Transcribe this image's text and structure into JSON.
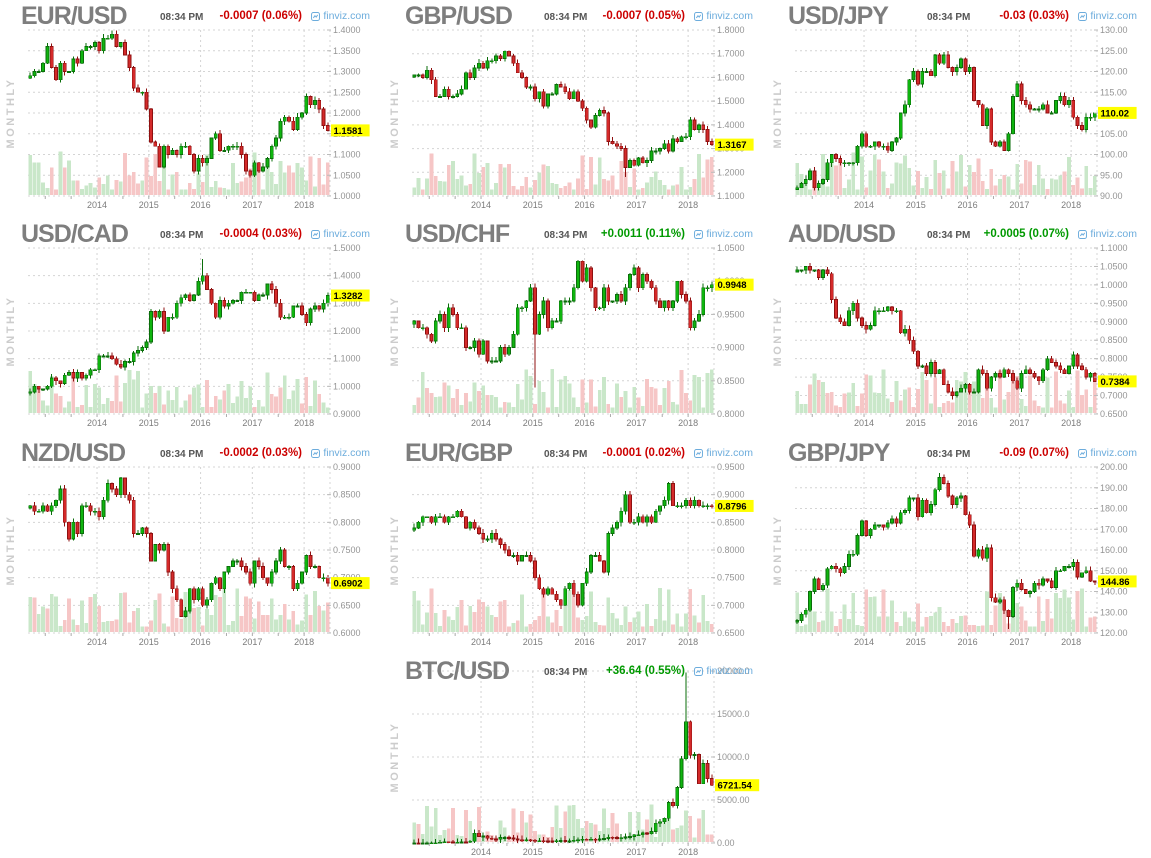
{
  "page": {
    "background": "#ffffff"
  },
  "colors": {
    "change_down": "#cc0000",
    "change_up": "#009900",
    "link_blue": "#6cacdc",
    "title_gray": "#7e7e7e",
    "badge_yellow": "#ffff00",
    "badge_text": "#000000",
    "grid": "#d4d4d4",
    "axis_label": "#949494",
    "timeframe_label": "#cccccc",
    "candle_up": "#0fb50f",
    "candle_up_border": "#0a6e0a",
    "candle_down": "#d42a2a",
    "candle_down_border": "#8f1010",
    "vol_up": "#c9e7c9",
    "vol_down": "#f6c6c6"
  },
  "chart_data": [
    {
      "type": "candlestick",
      "pair": "EUR/USD",
      "timeframe": "MONTHLY",
      "time": "08:34 PM",
      "change": "-0.0007 (0.06%)",
      "direction": "down",
      "source": "finviz.com",
      "last_label": "1.1581",
      "last_value": 1.1581,
      "y_min": 1.0,
      "y_max": 1.4,
      "y_ticks": [
        "1.4000",
        "1.3500",
        "1.3000",
        "1.2500",
        "1.2000",
        "1.1500",
        "1.1000",
        "1.0500",
        "1.0000"
      ],
      "x_labels": [
        "2014",
        "2015",
        "2016",
        "2017",
        "2018"
      ],
      "closes": [
        1.29,
        1.3,
        1.3,
        1.32,
        1.36,
        1.31,
        1.28,
        1.32,
        1.3,
        1.3,
        1.33,
        1.32,
        1.35,
        1.36,
        1.36,
        1.37,
        1.35,
        1.38,
        1.38,
        1.39,
        1.36,
        1.37,
        1.34,
        1.31,
        1.26,
        1.25,
        1.25,
        1.21,
        1.13,
        1.12,
        1.07,
        1.12,
        1.1,
        1.11,
        1.1,
        1.12,
        1.12,
        1.1,
        1.06,
        1.09,
        1.08,
        1.09,
        1.14,
        1.15,
        1.11,
        1.11,
        1.12,
        1.12,
        1.12,
        1.1,
        1.06,
        1.05,
        1.08,
        1.06,
        1.07,
        1.09,
        1.12,
        1.14,
        1.18,
        1.19,
        1.18,
        1.16,
        1.19,
        1.2,
        1.24,
        1.22,
        1.23,
        1.21,
        1.17,
        1.1581
      ],
      "wick_extremes": []
    },
    {
      "type": "candlestick",
      "pair": "GBP/USD",
      "timeframe": "MONTHLY",
      "time": "08:34 PM",
      "change": "-0.0007 (0.05%)",
      "direction": "down",
      "source": "finviz.com",
      "last_label": "1.3167",
      "last_value": 1.3167,
      "y_min": 1.1,
      "y_max": 1.8,
      "y_ticks": [
        "1.8000",
        "1.7000",
        "1.6000",
        "1.5000",
        "1.4000",
        "1.3000",
        "1.2000",
        "1.1000"
      ],
      "x_labels": [
        "2014",
        "2015",
        "2016",
        "2017",
        "2018"
      ],
      "closes": [
        1.61,
        1.61,
        1.6,
        1.63,
        1.59,
        1.52,
        1.52,
        1.55,
        1.52,
        1.52,
        1.53,
        1.55,
        1.62,
        1.6,
        1.64,
        1.66,
        1.64,
        1.67,
        1.67,
        1.69,
        1.68,
        1.71,
        1.69,
        1.66,
        1.62,
        1.6,
        1.56,
        1.56,
        1.51,
        1.54,
        1.48,
        1.53,
        1.53,
        1.57,
        1.56,
        1.54,
        1.51,
        1.54,
        1.5,
        1.47,
        1.42,
        1.39,
        1.44,
        1.46,
        1.45,
        1.33,
        1.32,
        1.31,
        1.3,
        1.22,
        1.25,
        1.23,
        1.26,
        1.24,
        1.25,
        1.29,
        1.29,
        1.3,
        1.32,
        1.29,
        1.34,
        1.33,
        1.35,
        1.35,
        1.42,
        1.38,
        1.4,
        1.38,
        1.33,
        1.3167
      ],
      "wick_extremes": [
        {
          "index": 49,
          "low": 1.18
        }
      ]
    },
    {
      "type": "candlestick",
      "pair": "USD/JPY",
      "timeframe": "MONTHLY",
      "time": "08:34 PM",
      "change": "-0.03 (0.03%)",
      "direction": "down",
      "source": "finviz.com",
      "last_label": "110.02",
      "last_value": 110.02,
      "y_min": 90,
      "y_max": 130,
      "y_ticks": [
        "130.00",
        "125.00",
        "120.00",
        "115.00",
        "110.00",
        "105.00",
        "100.00",
        "95.00",
        "90.00"
      ],
      "x_labels": [
        "2014",
        "2015",
        "2016",
        "2017",
        "2018"
      ],
      "closes": [
        92,
        93,
        94,
        96,
        92,
        93,
        94,
        98,
        100,
        99,
        98,
        98,
        98,
        98,
        102,
        105,
        102,
        102,
        103,
        102,
        102,
        101,
        103,
        104,
        110,
        112,
        118,
        120,
        117,
        120,
        120,
        119,
        124,
        122,
        124,
        121,
        120,
        121,
        123,
        120,
        121,
        113,
        112,
        107,
        111,
        103,
        102,
        103,
        101,
        105,
        114,
        117,
        113,
        112,
        111,
        111,
        111,
        112,
        110,
        110,
        113,
        114,
        112,
        113,
        109,
        107,
        106,
        109,
        109,
        110.02
      ],
      "wick_extremes": []
    },
    {
      "type": "candlestick",
      "pair": "USD/CAD",
      "timeframe": "MONTHLY",
      "time": "08:34 PM",
      "change": "-0.0004 (0.03%)",
      "direction": "down",
      "source": "finviz.com",
      "last_label": "1.3282",
      "last_value": 1.3282,
      "y_min": 0.9,
      "y_max": 1.5,
      "y_ticks": [
        "1.5000",
        "1.4000",
        "1.3000",
        "1.2000",
        "1.1000",
        "1.0000",
        "0.9000"
      ],
      "x_labels": [
        "2014",
        "2015",
        "2016",
        "2017",
        "2018"
      ],
      "closes": [
        0.98,
        1.0,
        0.99,
        0.99,
        1.0,
        1.03,
        1.02,
        1.01,
        1.04,
        1.05,
        1.03,
        1.05,
        1.03,
        1.04,
        1.06,
        1.06,
        1.11,
        1.11,
        1.11,
        1.1,
        1.08,
        1.07,
        1.09,
        1.09,
        1.12,
        1.13,
        1.14,
        1.16,
        1.27,
        1.25,
        1.27,
        1.2,
        1.25,
        1.25,
        1.3,
        1.32,
        1.33,
        1.31,
        1.33,
        1.38,
        1.4,
        1.35,
        1.3,
        1.25,
        1.31,
        1.29,
        1.3,
        1.31,
        1.31,
        1.34,
        1.34,
        1.34,
        1.31,
        1.33,
        1.33,
        1.37,
        1.35,
        1.3,
        1.25,
        1.25,
        1.25,
        1.29,
        1.29,
        1.26,
        1.23,
        1.28,
        1.29,
        1.28,
        1.3,
        1.3282
      ],
      "wick_extremes": [
        {
          "index": 40,
          "high": 1.46
        }
      ]
    },
    {
      "type": "candlestick",
      "pair": "USD/CHF",
      "timeframe": "MONTHLY",
      "time": "08:34 PM",
      "change": "+0.0011 (0.11%)",
      "direction": "up",
      "source": "finviz.com",
      "last_label": "0.9948",
      "last_value": 0.9948,
      "y_min": 0.8,
      "y_max": 1.05,
      "y_ticks": [
        "1.0500",
        "1.0000",
        "0.9500",
        "0.9000",
        "0.8500",
        "0.8000"
      ],
      "x_labels": [
        "2014",
        "2015",
        "2016",
        "2017",
        "2018"
      ],
      "closes": [
        0.94,
        0.93,
        0.93,
        0.92,
        0.91,
        0.94,
        0.95,
        0.93,
        0.96,
        0.95,
        0.93,
        0.93,
        0.9,
        0.9,
        0.91,
        0.89,
        0.91,
        0.88,
        0.88,
        0.88,
        0.9,
        0.89,
        0.9,
        0.92,
        0.96,
        0.96,
        0.97,
        0.99,
        0.92,
        0.95,
        0.97,
        0.93,
        0.94,
        0.94,
        0.97,
        0.97,
        0.97,
        0.99,
        1.03,
        1.0,
        1.02,
        0.99,
        0.96,
        0.96,
        0.99,
        0.97,
        0.97,
        0.98,
        0.97,
        0.99,
        1.01,
        1.02,
        0.99,
        1.01,
        1.0,
        0.99,
        0.97,
        0.96,
        0.97,
        0.96,
        0.97,
        1.0,
        0.98,
        0.97,
        0.93,
        0.94,
        0.95,
        0.99,
        0.99,
        0.9948
      ],
      "wick_extremes": [
        {
          "index": 28,
          "low": 0.84
        }
      ]
    },
    {
      "type": "candlestick",
      "pair": "AUD/USD",
      "timeframe": "MONTHLY",
      "time": "08:34 PM",
      "change": "+0.0005 (0.07%)",
      "direction": "up",
      "source": "finviz.com",
      "last_label": "0.7384",
      "last_value": 0.7384,
      "y_min": 0.65,
      "y_max": 1.1,
      "y_ticks": [
        "1.1000",
        "1.0500",
        "1.0000",
        "0.9500",
        "0.9000",
        "0.8500",
        "0.8000",
        "0.7500",
        "0.7000",
        "0.6500"
      ],
      "x_labels": [
        "2014",
        "2015",
        "2016",
        "2017",
        "2018"
      ],
      "closes": [
        1.04,
        1.04,
        1.05,
        1.04,
        1.04,
        1.02,
        1.04,
        1.03,
        0.96,
        0.91,
        0.9,
        0.89,
        0.93,
        0.95,
        0.91,
        0.89,
        0.88,
        0.89,
        0.93,
        0.93,
        0.93,
        0.94,
        0.93,
        0.93,
        0.87,
        0.88,
        0.85,
        0.82,
        0.78,
        0.78,
        0.76,
        0.79,
        0.76,
        0.77,
        0.73,
        0.71,
        0.7,
        0.71,
        0.72,
        0.73,
        0.71,
        0.71,
        0.77,
        0.76,
        0.72,
        0.75,
        0.76,
        0.75,
        0.77,
        0.76,
        0.74,
        0.72,
        0.76,
        0.77,
        0.76,
        0.75,
        0.74,
        0.77,
        0.8,
        0.79,
        0.78,
        0.77,
        0.76,
        0.78,
        0.81,
        0.78,
        0.77,
        0.75,
        0.76,
        0.7384
      ],
      "wick_extremes": []
    },
    {
      "type": "candlestick",
      "pair": "NZD/USD",
      "timeframe": "MONTHLY",
      "time": "08:34 PM",
      "change": "-0.0002 (0.03%)",
      "direction": "down",
      "source": "finviz.com",
      "last_label": "0.6902",
      "last_value": 0.6902,
      "y_min": 0.6,
      "y_max": 0.9,
      "y_ticks": [
        "0.9000",
        "0.8500",
        "0.8000",
        "0.7500",
        "0.7000",
        "0.6500",
        "0.6000"
      ],
      "x_labels": [
        "2014",
        "2015",
        "2016",
        "2017",
        "2018"
      ],
      "closes": [
        0.83,
        0.82,
        0.82,
        0.83,
        0.82,
        0.83,
        0.84,
        0.86,
        0.8,
        0.77,
        0.8,
        0.78,
        0.83,
        0.83,
        0.82,
        0.82,
        0.81,
        0.84,
        0.87,
        0.86,
        0.85,
        0.88,
        0.85,
        0.84,
        0.78,
        0.78,
        0.79,
        0.78,
        0.73,
        0.76,
        0.75,
        0.76,
        0.71,
        0.68,
        0.66,
        0.63,
        0.64,
        0.68,
        0.66,
        0.68,
        0.65,
        0.66,
        0.69,
        0.7,
        0.68,
        0.71,
        0.72,
        0.73,
        0.73,
        0.72,
        0.71,
        0.69,
        0.73,
        0.72,
        0.7,
        0.69,
        0.71,
        0.73,
        0.75,
        0.72,
        0.72,
        0.68,
        0.69,
        0.71,
        0.74,
        0.72,
        0.72,
        0.7,
        0.7,
        0.6902
      ],
      "wick_extremes": []
    },
    {
      "type": "candlestick",
      "pair": "EUR/GBP",
      "timeframe": "MONTHLY",
      "time": "08:34 PM",
      "change": "-0.0001 (0.02%)",
      "direction": "down",
      "source": "finviz.com",
      "last_label": "0.8796",
      "last_value": 0.8796,
      "y_min": 0.65,
      "y_max": 0.95,
      "y_ticks": [
        "0.9500",
        "0.9000",
        "0.8500",
        "0.8000",
        "0.7500",
        "0.7000",
        "0.6500"
      ],
      "x_labels": [
        "2014",
        "2015",
        "2016",
        "2017",
        "2018"
      ],
      "closes": [
        0.84,
        0.85,
        0.86,
        0.86,
        0.85,
        0.86,
        0.86,
        0.85,
        0.86,
        0.86,
        0.87,
        0.86,
        0.84,
        0.85,
        0.84,
        0.83,
        0.82,
        0.82,
        0.83,
        0.82,
        0.81,
        0.8,
        0.79,
        0.79,
        0.78,
        0.79,
        0.79,
        0.78,
        0.75,
        0.73,
        0.72,
        0.73,
        0.72,
        0.71,
        0.7,
        0.73,
        0.74,
        0.72,
        0.7,
        0.74,
        0.76,
        0.79,
        0.79,
        0.78,
        0.76,
        0.83,
        0.84,
        0.85,
        0.87,
        0.9,
        0.85,
        0.85,
        0.86,
        0.85,
        0.86,
        0.85,
        0.87,
        0.88,
        0.89,
        0.92,
        0.88,
        0.88,
        0.88,
        0.89,
        0.88,
        0.89,
        0.88,
        0.88,
        0.88,
        0.8796
      ],
      "wick_extremes": []
    },
    {
      "type": "candlestick",
      "pair": "GBP/JPY",
      "timeframe": "MONTHLY",
      "time": "08:34 PM",
      "change": "-0.09 (0.07%)",
      "direction": "down",
      "source": "finviz.com",
      "last_label": "144.86",
      "last_value": 144.86,
      "y_min": 120,
      "y_max": 200,
      "y_ticks": [
        "200.00",
        "190.00",
        "180.00",
        "170.00",
        "160.00",
        "150.00",
        "140.00",
        "130.00",
        "120.00"
      ],
      "x_labels": [
        "2014",
        "2015",
        "2016",
        "2017",
        "2018"
      ],
      "closes": [
        126,
        129,
        131,
        140,
        146,
        141,
        143,
        151,
        152,
        151,
        149,
        152,
        158,
        158,
        167,
        174,
        167,
        170,
        172,
        172,
        171,
        173,
        175,
        173,
        178,
        179,
        185,
        185,
        176,
        184,
        178,
        182,
        189,
        195,
        192,
        186,
        182,
        185,
        186,
        177,
        172,
        157,
        160,
        156,
        161,
        137,
        135,
        136,
        131,
        128,
        142,
        144,
        141,
        139,
        140,
        144,
        143,
        146,
        145,
        142,
        150,
        150,
        152,
        152,
        154,
        147,
        149,
        150,
        145,
        144.86
      ],
      "wick_extremes": [
        {
          "index": 49,
          "low": 122
        }
      ]
    },
    {
      "type": "candlestick",
      "pair": "BTC/USD",
      "timeframe": "MONTHLY",
      "time": "08:34 PM",
      "change": "+36.64 (0.55%)",
      "direction": "up",
      "source": "finviz.com",
      "last_label": "6721.54",
      "last_value": 6721.54,
      "y_min": 0,
      "y_max": 20000,
      "y_ticks": [
        "20000.0",
        "15000.0",
        "10000.0",
        "5000.00",
        "0.00"
      ],
      "x_labels": [
        "2014",
        "2015",
        "2016",
        "2017",
        "2018"
      ],
      "closes": [
        12,
        11,
        12,
        13,
        20,
        33,
        93,
        140,
        129,
        97,
        98,
        128,
        127,
        204,
        1130,
        754,
        816,
        550,
        454,
        446,
        627,
        640,
        585,
        478,
        387,
        338,
        378,
        320,
        217,
        254,
        244,
        236,
        230,
        263,
        284,
        230,
        236,
        314,
        377,
        430,
        368,
        437,
        416,
        448,
        531,
        673,
        624,
        575,
        610,
        700,
        745,
        963,
        970,
        1180,
        1080,
        1350,
        2300,
        2480,
        2875,
        4700,
        4340,
        6450,
        9800,
        14100,
        10200,
        10300,
        6900,
        9250,
        7500,
        6721.54
      ],
      "wick_extremes": [
        {
          "index": 63,
          "high": 19800
        }
      ]
    }
  ]
}
